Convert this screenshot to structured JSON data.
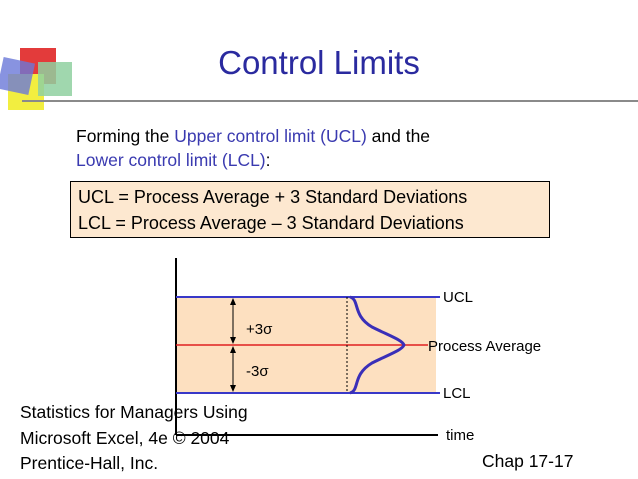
{
  "slide": {
    "title": "Control Limits",
    "intro": {
      "line1_pre": "Forming the ",
      "line1_hl": "Upper control limit (UCL)",
      "line1_post": " and the",
      "line2_hl": "Lower control limit (LCL)",
      "line2_post": ":"
    },
    "formulas": [
      "UCL = Process Average + 3 Standard Deviations",
      "LCL = Process Average – 3 Standard Deviations"
    ],
    "diagram": {
      "ucl_label": "UCL",
      "avg_label": "Process Average",
      "lcl_label": "LCL",
      "plus_label": "+3σ",
      "minus_label": "-3σ",
      "time_label": "time"
    },
    "footer": {
      "line1": "Statistics for Managers Using",
      "line2": "Microsoft Excel, 4e © 2004",
      "line3": "Prentice-Hall, Inc.",
      "chap": "Chap 17-17"
    },
    "colors": {
      "title": "#2a2a9f",
      "highlight": "#3a3ab0",
      "band_fill": "#fde0c0",
      "limit_lines": "#3838c8",
      "average_line": "#e02020",
      "curve": "#3a2fb8"
    }
  }
}
